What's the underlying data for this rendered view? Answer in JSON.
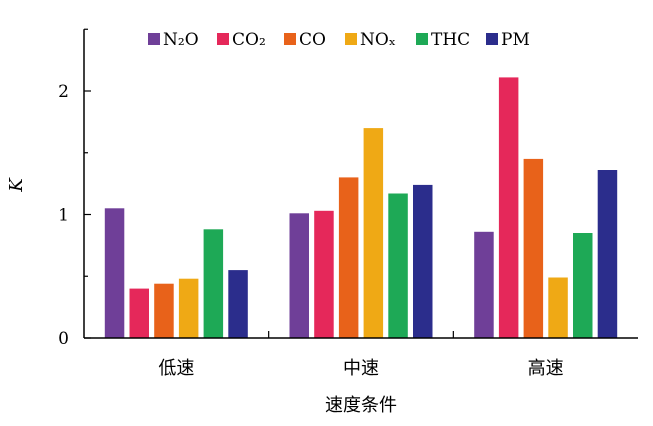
{
  "chart_data": {
    "type": "bar",
    "xlabel": "速度条件",
    "ylabel": "K",
    "ylim": [
      0,
      2.5
    ],
    "yticks": [
      "0",
      "1",
      "2"
    ],
    "categories": [
      "低速",
      "中速",
      "高速"
    ],
    "legend_position": "top",
    "series": [
      {
        "name": "N₂O",
        "color": "#6F3F98",
        "values": [
          1.05,
          1.01,
          0.86
        ]
      },
      {
        "name": "CO₂",
        "color": "#E5285A",
        "values": [
          0.4,
          1.03,
          2.11
        ]
      },
      {
        "name": "CO",
        "color": "#E8621A",
        "values": [
          0.44,
          1.3,
          1.45
        ]
      },
      {
        "name": "NOₓ",
        "color": "#EFA915",
        "values": [
          0.48,
          1.7,
          0.49
        ]
      },
      {
        "name": "THC",
        "color": "#1EA956",
        "values": [
          0.88,
          1.17,
          0.85
        ]
      },
      {
        "name": "PM",
        "color": "#2B2D8C",
        "values": [
          0.55,
          1.24,
          1.36
        ]
      }
    ]
  }
}
